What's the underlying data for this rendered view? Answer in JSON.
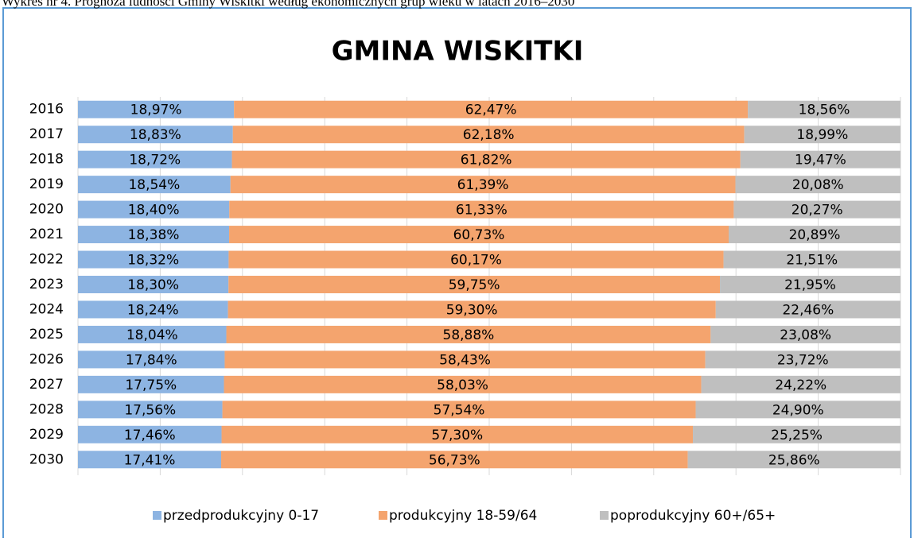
{
  "caption": "Wykres nr 4. Prognoza ludności Gminy Wiskitki według ekonomicznych grup wieku w latach 2016–2030",
  "chart_data": {
    "type": "bar",
    "orientation": "horizontal",
    "stacked": true,
    "title": "GMINA WISKITKI",
    "categories": [
      "2016",
      "2017",
      "2018",
      "2019",
      "2020",
      "2021",
      "2022",
      "2023",
      "2024",
      "2025",
      "2026",
      "2027",
      "2028",
      "2029",
      "2030"
    ],
    "series": [
      {
        "name": "przedprodukcyjny 0-17",
        "color": "#8DB4E2",
        "values": [
          18.97,
          18.83,
          18.72,
          18.54,
          18.4,
          18.38,
          18.32,
          18.3,
          18.24,
          18.04,
          17.84,
          17.75,
          17.56,
          17.46,
          17.41
        ],
        "value_labels": [
          "18,97%",
          "18,83%",
          "18,72%",
          "18,54%",
          "18,40%",
          "18,38%",
          "18,32%",
          "18,30%",
          "18,24%",
          "18,04%",
          "17,84%",
          "17,75%",
          "17,56%",
          "17,46%",
          "17,41%"
        ]
      },
      {
        "name": "produkcyjny 18-59/64",
        "color": "#F4A46E",
        "values": [
          62.47,
          62.18,
          61.82,
          61.39,
          61.33,
          60.73,
          60.17,
          59.75,
          59.3,
          58.88,
          58.43,
          58.03,
          57.54,
          57.3,
          56.73
        ],
        "value_labels": [
          "62,47%",
          "62,18%",
          "61,82%",
          "61,39%",
          "61,33%",
          "60,73%",
          "60,17%",
          "59,75%",
          "59,30%",
          "58,88%",
          "58,43%",
          "58,03%",
          "57,54%",
          "57,30%",
          "56,73%"
        ]
      },
      {
        "name": "poprodukcyjny 60+/65+",
        "color": "#BFBFBF",
        "values": [
          18.56,
          18.99,
          19.47,
          20.08,
          20.27,
          20.89,
          21.51,
          21.95,
          22.46,
          23.08,
          23.72,
          24.22,
          24.9,
          25.25,
          25.86
        ],
        "value_labels": [
          "18,56%",
          "18,99%",
          "19,47%",
          "20,08%",
          "20,27%",
          "20,89%",
          "21,51%",
          "21,95%",
          "22,46%",
          "23,08%",
          "23,72%",
          "24,22%",
          "24,90%",
          "25,25%",
          "25,86%"
        ]
      }
    ],
    "xlim": [
      0,
      100
    ],
    "xticks": [
      0,
      10,
      20,
      30,
      40,
      50,
      60,
      70,
      80,
      90,
      100
    ],
    "grid": true,
    "legend": "bottom"
  }
}
